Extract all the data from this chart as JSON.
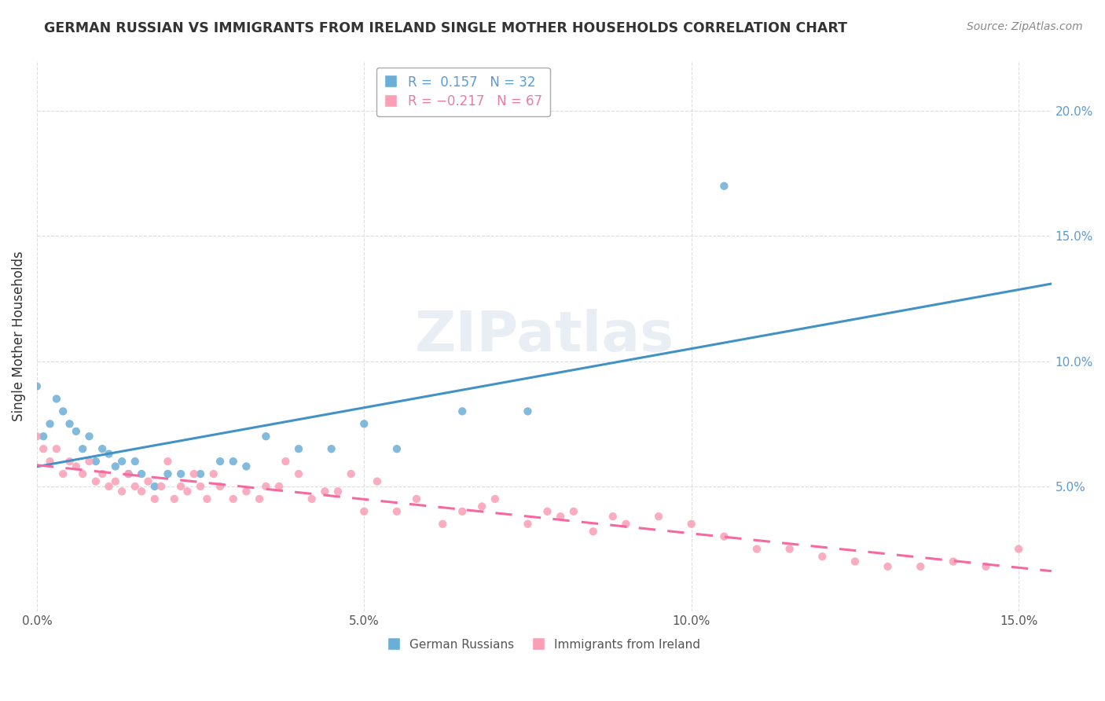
{
  "title": "GERMAN RUSSIAN VS IMMIGRANTS FROM IRELAND SINGLE MOTHER HOUSEHOLDS CORRELATION CHART",
  "source": "Source: ZipAtlas.com",
  "ylabel": "Single Mother Households",
  "legend1_label": "R =  0.157   N = 32",
  "legend2_label": "R = −0.217   N = 67",
  "legend_bottom1": "German Russians",
  "legend_bottom2": "Immigrants from Ireland",
  "watermark": "ZIPatlas",
  "color_blue": "#6baed6",
  "color_pink": "#fa9fb5",
  "color_blue_dark": "#4292c6",
  "color_pink_dark": "#f768a1",
  "german_russian_x": [
    0.0,
    0.001,
    0.002,
    0.003,
    0.004,
    0.005,
    0.006,
    0.007,
    0.008,
    0.009,
    0.01,
    0.011,
    0.012,
    0.013,
    0.014,
    0.015,
    0.016,
    0.018,
    0.02,
    0.022,
    0.025,
    0.028,
    0.03,
    0.032,
    0.035,
    0.04,
    0.045,
    0.05,
    0.055,
    0.065,
    0.075,
    0.105
  ],
  "german_russian_y": [
    0.09,
    0.07,
    0.075,
    0.085,
    0.08,
    0.075,
    0.072,
    0.065,
    0.07,
    0.06,
    0.065,
    0.063,
    0.058,
    0.06,
    0.055,
    0.06,
    0.055,
    0.05,
    0.055,
    0.055,
    0.055,
    0.06,
    0.06,
    0.058,
    0.07,
    0.065,
    0.065,
    0.075,
    0.065,
    0.08,
    0.08,
    0.17
  ],
  "ireland_x": [
    0.0,
    0.001,
    0.002,
    0.003,
    0.004,
    0.005,
    0.006,
    0.007,
    0.008,
    0.009,
    0.01,
    0.011,
    0.012,
    0.013,
    0.014,
    0.015,
    0.016,
    0.017,
    0.018,
    0.019,
    0.02,
    0.021,
    0.022,
    0.023,
    0.024,
    0.025,
    0.026,
    0.027,
    0.028,
    0.03,
    0.032,
    0.034,
    0.035,
    0.037,
    0.038,
    0.04,
    0.042,
    0.044,
    0.046,
    0.048,
    0.05,
    0.052,
    0.055,
    0.058,
    0.062,
    0.065,
    0.068,
    0.07,
    0.075,
    0.078,
    0.08,
    0.082,
    0.085,
    0.088,
    0.09,
    0.095,
    0.1,
    0.105,
    0.11,
    0.115,
    0.12,
    0.125,
    0.13,
    0.135,
    0.14,
    0.145,
    0.15
  ],
  "ireland_y": [
    0.07,
    0.065,
    0.06,
    0.065,
    0.055,
    0.06,
    0.058,
    0.055,
    0.06,
    0.052,
    0.055,
    0.05,
    0.052,
    0.048,
    0.055,
    0.05,
    0.048,
    0.052,
    0.045,
    0.05,
    0.06,
    0.045,
    0.05,
    0.048,
    0.055,
    0.05,
    0.045,
    0.055,
    0.05,
    0.045,
    0.048,
    0.045,
    0.05,
    0.05,
    0.06,
    0.055,
    0.045,
    0.048,
    0.048,
    0.055,
    0.04,
    0.052,
    0.04,
    0.045,
    0.035,
    0.04,
    0.042,
    0.045,
    0.035,
    0.04,
    0.038,
    0.04,
    0.032,
    0.038,
    0.035,
    0.038,
    0.035,
    0.03,
    0.025,
    0.025,
    0.022,
    0.02,
    0.018,
    0.018,
    0.02,
    0.018,
    0.025
  ],
  "xlim": [
    0.0,
    0.155
  ],
  "ylim": [
    0.0,
    0.22
  ],
  "x_ticks": [
    0.0,
    0.05,
    0.1,
    0.15
  ],
  "y_ticks_right": [
    0.05,
    0.1,
    0.15,
    0.2
  ]
}
